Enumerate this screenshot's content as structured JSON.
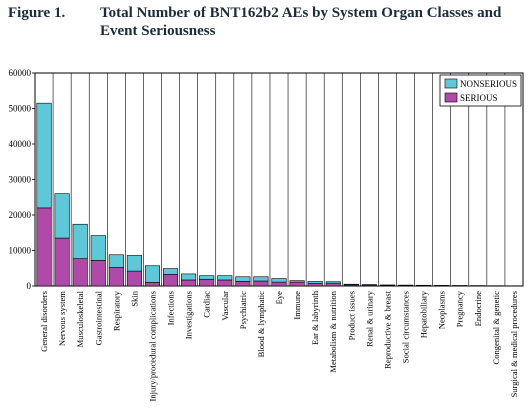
{
  "header": {
    "figure_label": "Figure 1.",
    "title": "Total Number of BNT162b2 AEs by System Organ Classes and Event Seriousness"
  },
  "colors": {
    "nonserious": "#5ec8d8",
    "serious": "#b04aa8",
    "frame": "#000000",
    "grid": "#000000"
  },
  "chart_data": {
    "type": "bar",
    "stacked": true,
    "title": "Total Number of BNT162b2 AEs by System Organ Classes and Event Seriousness",
    "xlabel": "",
    "ylabel": "",
    "ylim": [
      0,
      60000
    ],
    "yticks": [
      0,
      10000,
      20000,
      30000,
      40000,
      50000,
      60000
    ],
    "grid": "vertical lines between categories",
    "legend_position": "top-right",
    "categories": [
      "General disorders",
      "Nervous system",
      "Musculoskeletal",
      "Gastrointestinal",
      "Respiratory",
      "Skin",
      "Injury/procedural complications",
      "Infections",
      "Investigations",
      "Cardiac",
      "Vascular",
      "Psychiatric",
      "Blood & lymphatic",
      "Eye",
      "Immune",
      "Ear & labyrinth",
      "Metabolism & nutrition",
      "Product issues",
      "Renal & urinary",
      "Reproductive & breast",
      "Social circumstances",
      "Hepatobiliary",
      "Neoplasms",
      "Pregnancy",
      "Endocrine",
      "Congenital & genetic",
      "Surgical & medical procedures"
    ],
    "series": [
      {
        "name": "SERIOUS",
        "values": [
          22000,
          13500,
          7700,
          7200,
          5200,
          4200,
          1000,
          3300,
          1700,
          1900,
          1700,
          1300,
          1400,
          1100,
          1100,
          700,
          800,
          300,
          250,
          150,
          120,
          150,
          120,
          80,
          70,
          50,
          40
        ]
      },
      {
        "name": "NONSERIOUS",
        "values": [
          29500,
          12500,
          9700,
          7000,
          3600,
          4400,
          4700,
          1600,
          1700,
          1000,
          1200,
          1300,
          1200,
          1000,
          400,
          600,
          400,
          200,
          150,
          150,
          130,
          60,
          60,
          60,
          40,
          40,
          30
        ]
      }
    ]
  }
}
